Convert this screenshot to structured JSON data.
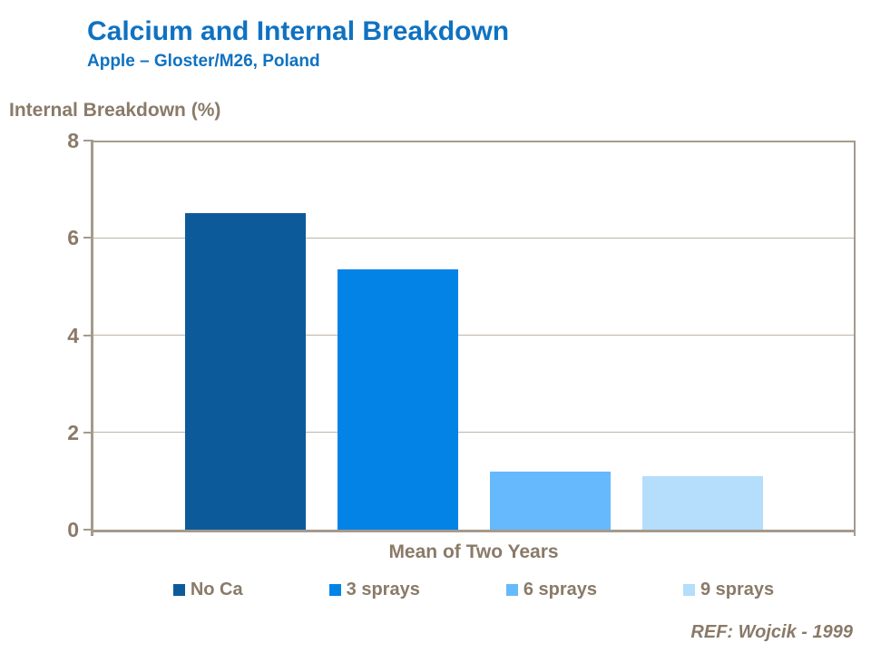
{
  "slide": {
    "title": "Calcium and Internal Breakdown",
    "subtitle": "Apple – Gloster/M26, Poland",
    "footer": "REF: Wojcik - 1999"
  },
  "colors": {
    "title_blue": "#0F72C1",
    "label_brown": "#8A7A68",
    "axis_line": "#A59A8C",
    "gridline": "#BCB3A7",
    "background": "#FFFFFF"
  },
  "chart_data": {
    "type": "bar",
    "title": "Internal Breakdown (%)",
    "ylabel": "Internal Breakdown (%)",
    "xlabel": "Mean of Two Years",
    "categories": [
      "Mean of Two Years"
    ],
    "series": [
      {
        "name": "No Ca",
        "values": [
          6.5
        ],
        "color": "#0D5A9B"
      },
      {
        "name": "3 sprays",
        "values": [
          5.35
        ],
        "color": "#0483E7"
      },
      {
        "name": "6 sprays",
        "values": [
          1.2
        ],
        "color": "#66B9FC"
      },
      {
        "name": "9 sprays",
        "values": [
          1.1
        ],
        "color": "#B5DDFC"
      }
    ],
    "ylim": [
      0,
      8
    ],
    "yticks": [
      0,
      2,
      4,
      6,
      8
    ],
    "grid": true,
    "legend_position": "bottom"
  }
}
